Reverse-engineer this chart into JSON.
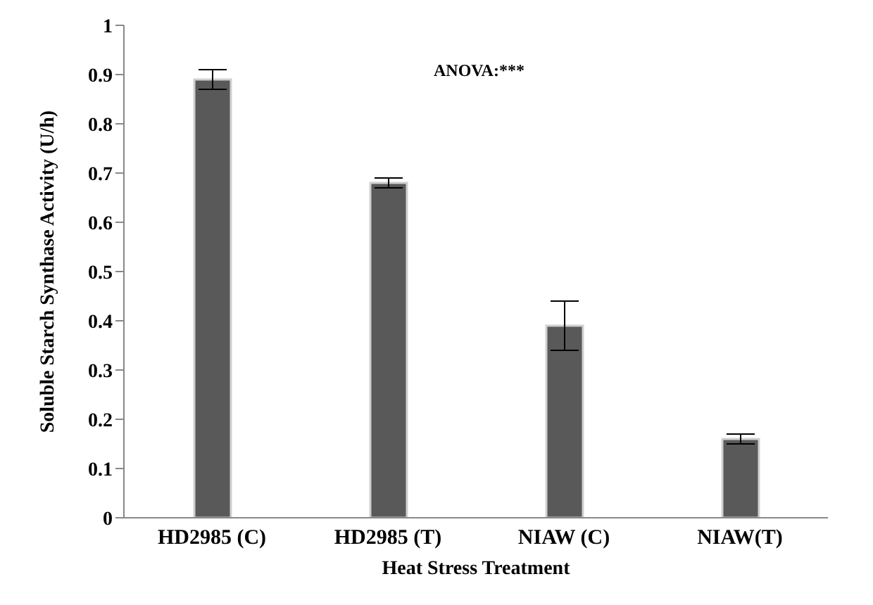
{
  "chart_data": {
    "type": "bar",
    "xlabel": "Heat Stress Treatment",
    "ylabel": "Soluble Starch Synthase Activity (U/h)",
    "categories": [
      "HD2985 (C)",
      "HD2985 (T)",
      "NIAW (C)",
      "NIAW(T)"
    ],
    "values": [
      0.89,
      0.68,
      0.39,
      0.16
    ],
    "errors": [
      0.02,
      0.01,
      0.05,
      0.01
    ],
    "color": "#595959",
    "ylim": [
      0,
      1
    ],
    "yticks": [
      0,
      0.1,
      0.2,
      0.3,
      0.4,
      0.5,
      0.6,
      0.7,
      0.8,
      0.9,
      1
    ],
    "annotations": [
      "ANOVA:***"
    ],
    "grid": false,
    "legend": false
  }
}
